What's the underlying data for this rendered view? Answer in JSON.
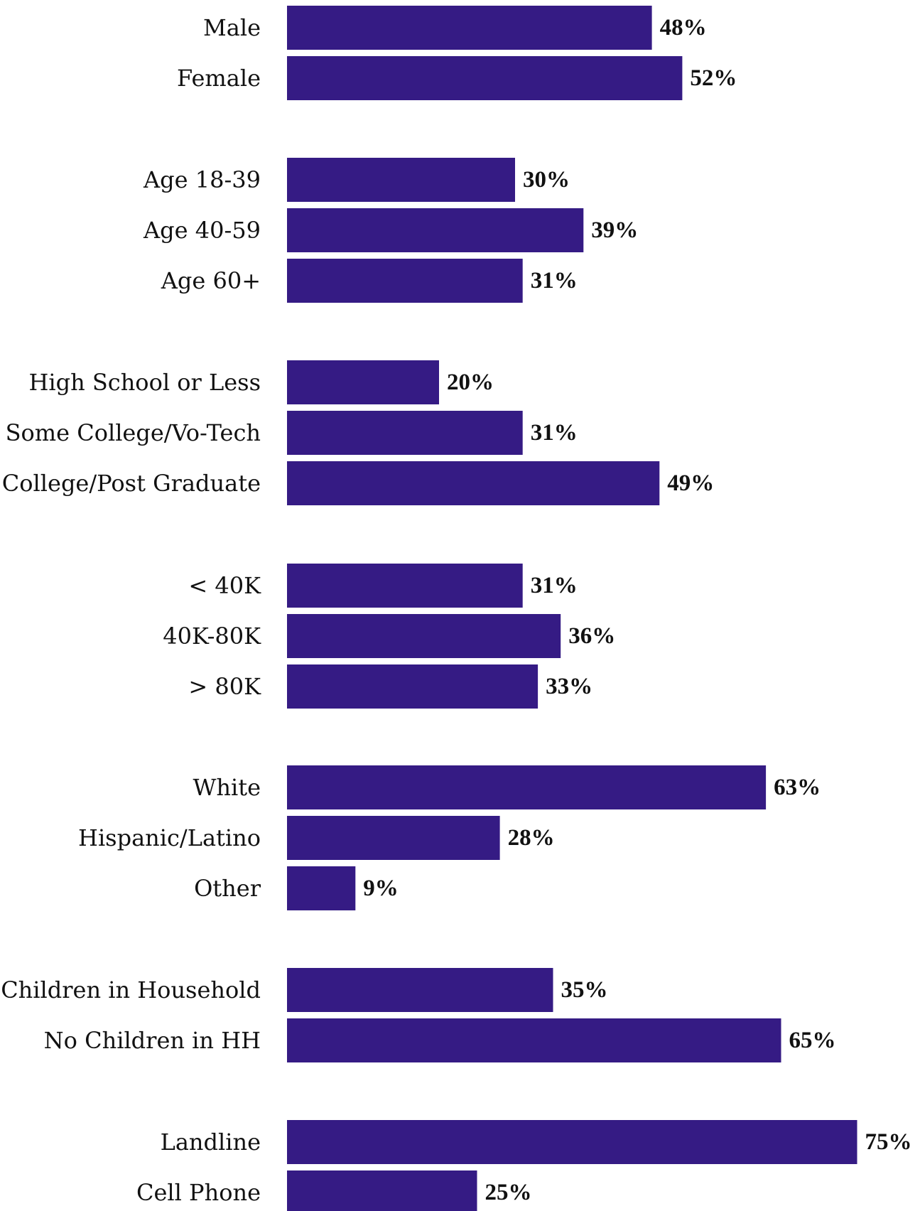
{
  "chart_data": {
    "type": "bar",
    "orientation": "horizontal",
    "value_suffix": "%",
    "bar_color": "#351b84",
    "xlim": [
      0,
      100
    ],
    "grid": false,
    "groups": [
      {
        "categories": [
          "Male",
          "Female"
        ],
        "values": [
          48,
          52
        ],
        "value_labels": [
          "48%",
          "52%"
        ]
      },
      {
        "categories": [
          "Age 18-39",
          "Age 40-59",
          "Age 60+"
        ],
        "values": [
          30,
          39,
          31
        ],
        "value_labels": [
          "30%",
          "39%",
          "31%"
        ]
      },
      {
        "categories": [
          "High School or Less",
          "Some College/Vo-Tech",
          "College/Post Graduate"
        ],
        "values": [
          20,
          31,
          49
        ],
        "value_labels": [
          "20%",
          "31%",
          "49%"
        ]
      },
      {
        "categories": [
          "< 40K",
          "40K-80K",
          "> 80K"
        ],
        "values": [
          31,
          36,
          33
        ],
        "value_labels": [
          "31%",
          "36%",
          "33%"
        ]
      },
      {
        "categories": [
          "White",
          "Hispanic/Latino",
          "Other"
        ],
        "values": [
          63,
          28,
          9
        ],
        "value_labels": [
          "63%",
          "28%",
          "9%"
        ]
      },
      {
        "categories": [
          "Children in Household",
          "No Children in HH"
        ],
        "values": [
          35,
          65
        ],
        "value_labels": [
          "35%",
          "65%"
        ]
      },
      {
        "categories": [
          "Landline",
          "Cell Phone"
        ],
        "values": [
          75,
          25
        ],
        "value_labels": [
          "75%",
          "25%"
        ]
      }
    ]
  }
}
